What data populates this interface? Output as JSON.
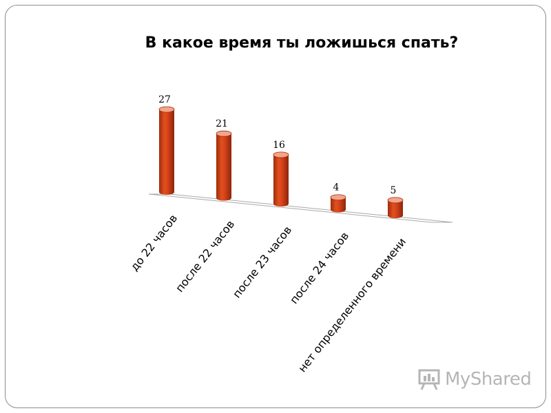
{
  "chart_data": {
    "type": "bar",
    "title": "В какое время ты ложишься спать?",
    "categories": [
      "до 22 часов",
      "после 22 часов",
      "после 23 часов",
      "после 24 часов",
      "нет определенного времени"
    ],
    "values": [
      27,
      21,
      16,
      4,
      5
    ],
    "xlabel": "",
    "ylabel": "",
    "ylim": [
      0,
      27
    ],
    "grid": false,
    "legend": "none",
    "bar_color": "#d9431a",
    "bar_shape": "cylinder"
  },
  "watermark": {
    "text": "MyShared",
    "icon": "presentation-board-icon"
  },
  "colors": {
    "bar": "#d9431a",
    "bar_dark": "#a22d0c",
    "bar_top": "#f2a58a"
  }
}
